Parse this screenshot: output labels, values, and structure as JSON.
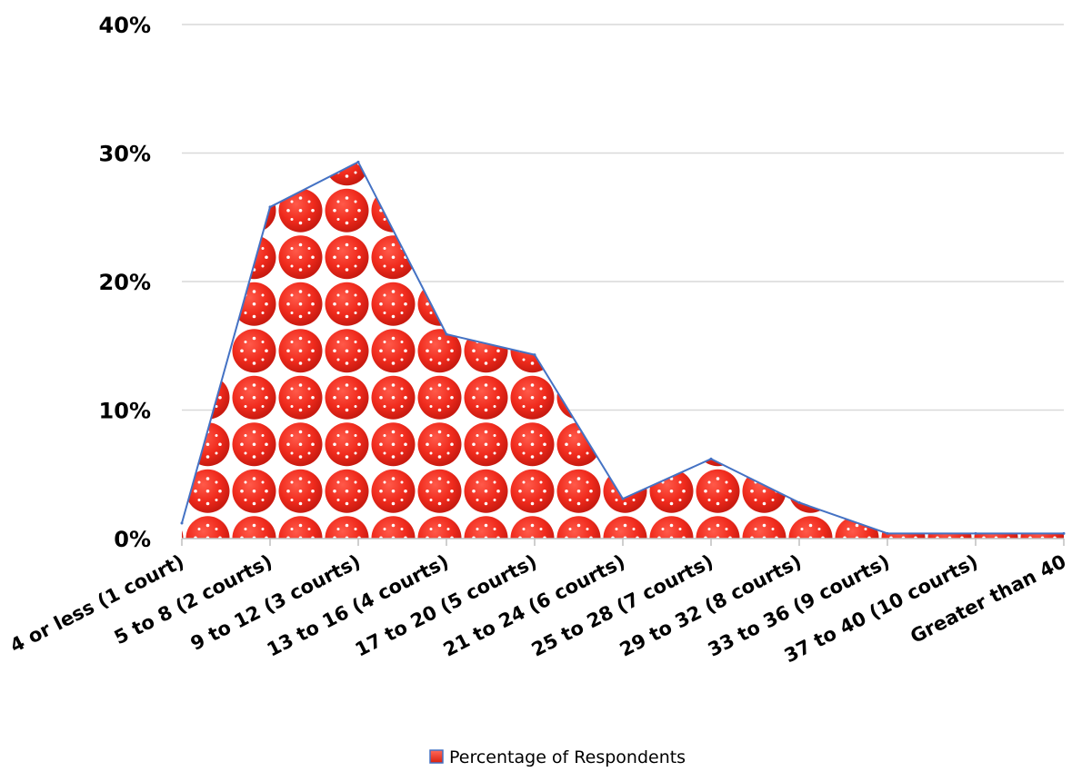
{
  "chart_data": {
    "type": "area",
    "title": "",
    "xlabel": "",
    "ylabel": "",
    "ylim": [
      0,
      0.4
    ],
    "yticks": [
      0,
      0.1,
      0.2,
      0.3,
      0.4
    ],
    "ytick_labels": [
      "0%",
      "10%",
      "20%",
      "30%",
      "40%"
    ],
    "grid": true,
    "legend_position": "bottom",
    "categories": [
      "4 or less (1 court)",
      "5 to 8 (2 courts)",
      "9 to 12 (3 courts)",
      "13 to 16 (4 courts)",
      "17 to 20 (5 courts)",
      "21 to 24 (6 courts)",
      "25 to 28 (7 courts)",
      "29 to 32 (8 courts)",
      "33 to 36 (9 courts)",
      "37 to 40 (10 courts)",
      "Greater than 40"
    ],
    "series": [
      {
        "name": "Percentage of Respondents",
        "values": [
          0.012,
          0.258,
          0.293,
          0.159,
          0.143,
          0.031,
          0.062,
          0.028,
          0.004,
          0.004,
          0.004
        ],
        "fill_color": "#f02b1d",
        "line_color": "#4472c4"
      }
    ]
  }
}
